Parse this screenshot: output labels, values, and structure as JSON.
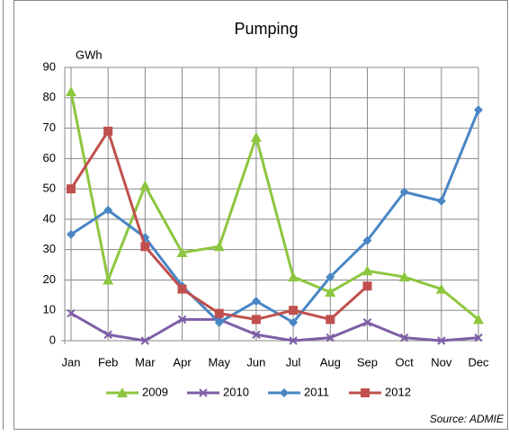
{
  "chart_data": {
    "type": "line",
    "title": "Pumping",
    "y_label": "GWh",
    "annotation": "Source: ADMIE",
    "categories": [
      "Jan",
      "Feb",
      "Mar",
      "Apr",
      "May",
      "Jun",
      "Jul",
      "Aug",
      "Sep",
      "Oct",
      "Nov",
      "Dec"
    ],
    "series": [
      {
        "name": "2009",
        "color": "#8dc63f",
        "marker": "triangle",
        "values": [
          82,
          20,
          51,
          29,
          31,
          67,
          21,
          16,
          23,
          21,
          17,
          7
        ]
      },
      {
        "name": "2010",
        "color": "#7e5ea6",
        "marker": "x",
        "values": [
          9,
          2,
          0,
          7,
          7,
          2,
          0,
          1,
          6,
          1,
          0,
          1
        ]
      },
      {
        "name": "2011",
        "color": "#4a86c5",
        "marker": "diamond",
        "values": [
          35,
          43,
          34,
          18,
          6,
          13,
          6,
          21,
          33,
          49,
          46,
          76
        ]
      },
      {
        "name": "2012",
        "color": "#c0504d",
        "marker": "square",
        "values": [
          50,
          69,
          31,
          17,
          9,
          7,
          10,
          7,
          18,
          null,
          null,
          null
        ]
      }
    ],
    "ylim": [
      0,
      90
    ],
    "yticks": [
      0,
      10,
      20,
      30,
      40,
      50,
      60,
      70,
      80,
      90
    ],
    "grid": true,
    "legend": "bottom"
  }
}
